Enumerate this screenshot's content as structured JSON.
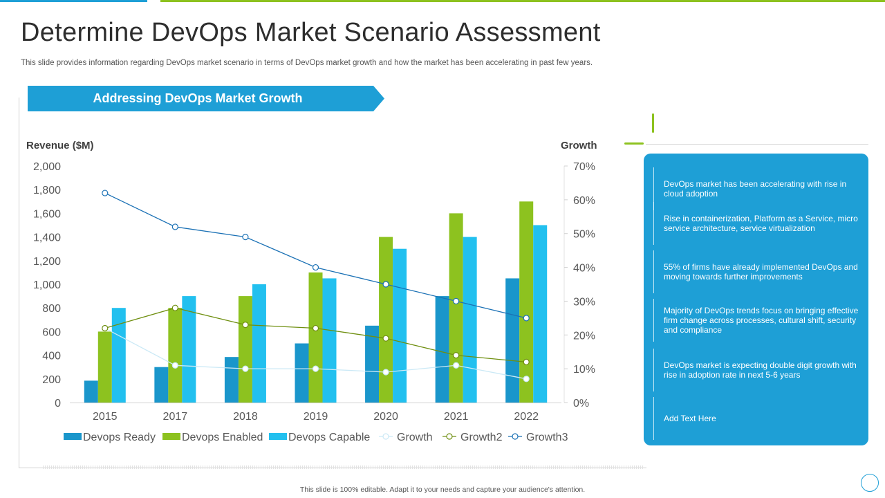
{
  "slide": {
    "title": "Determine DevOps Market Scenario Assessment",
    "subtitle": "This slide provides information regarding DevOps market scenario in terms of DevOps market growth and how the market has been accelerating in past few years.",
    "banner": "Addressing DevOps Market Growth",
    "footer": "This slide is 100% editable. Adapt it to your needs and capture your audience's attention."
  },
  "colors": {
    "brand_blue": "#1e9fd6",
    "brand_green": "#8dc21f"
  },
  "panel": {
    "items": [
      "DevOps market has been accelerating with rise in cloud adoption",
      "Rise in containerization, Platform as a Service, micro service architecture, service virtualization",
      "55% of firms have already implemented DevOps and moving towards further improvements",
      "Majority of DevOps trends focus on bringing effective firm change across processes, cultural shift, security and compliance",
      "DevOps market is expecting double digit growth with rise in adoption rate in next 5-6 years",
      "Add Text Here"
    ]
  },
  "chart_data": {
    "type": "bar",
    "title": "Addressing DevOps Market Growth",
    "ylabel": "Revenue ($M)",
    "y2label": "Growth",
    "ylim": [
      0,
      2000
    ],
    "y2lim": [
      0,
      70
    ],
    "yticks": [
      "0",
      "200",
      "400",
      "600",
      "800",
      "1,000",
      "1,200",
      "1,400",
      "1,600",
      "1,800",
      "2,000"
    ],
    "y2ticks": [
      "0%",
      "10%",
      "20%",
      "30%",
      "40%",
      "50%",
      "60%",
      "70%"
    ],
    "categories": [
      "2015",
      "2017",
      "2018",
      "2019",
      "2020",
      "2021",
      "2022"
    ],
    "series": [
      {
        "name": "Devops Ready",
        "kind": "bar",
        "color": "#1a96cb",
        "values": [
          185,
          300,
          385,
          500,
          650,
          900,
          1050
        ]
      },
      {
        "name": "Devops Enabled",
        "kind": "bar",
        "color": "#8dc21f",
        "values": [
          600,
          800,
          900,
          1100,
          1400,
          1600,
          1700
        ]
      },
      {
        "name": "Devops Capable",
        "kind": "bar",
        "color": "#22c0ef",
        "values": [
          800,
          900,
          1000,
          1050,
          1300,
          1400,
          1500
        ]
      },
      {
        "name": "Growth",
        "kind": "line",
        "color": "#cbe9f6",
        "values": [
          22,
          11,
          10,
          10,
          9,
          11,
          7
        ]
      },
      {
        "name": "Growth2",
        "kind": "line",
        "color": "#6f8f10",
        "values": [
          22,
          28,
          23,
          22,
          19,
          14,
          12
        ]
      },
      {
        "name": "Growth3",
        "kind": "line",
        "color": "#1b71b5",
        "values": [
          62,
          52,
          49,
          40,
          35,
          30,
          25
        ]
      }
    ]
  }
}
